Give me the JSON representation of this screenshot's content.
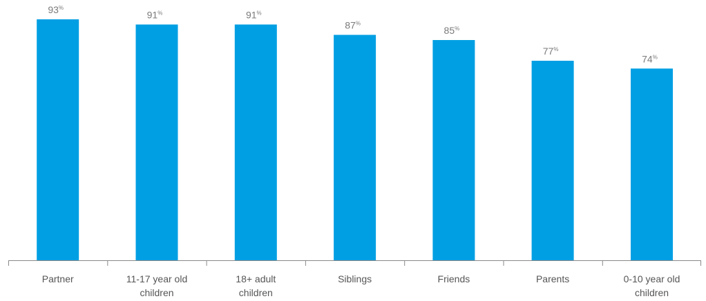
{
  "chart_data": {
    "type": "bar",
    "categories": [
      "Partner",
      "11-17 year old children",
      "18+ adult children",
      "Siblings",
      "Friends",
      "Parents",
      "0-10 year old children"
    ],
    "category_lines": [
      [
        "Partner"
      ],
      [
        "11-17 year old",
        "children"
      ],
      [
        "18+ adult",
        "children"
      ],
      [
        "Siblings"
      ],
      [
        "Friends"
      ],
      [
        "Parents"
      ],
      [
        "0-10 year old",
        "children"
      ]
    ],
    "values": [
      93,
      91,
      91,
      87,
      85,
      77,
      74
    ],
    "value_suffix": "%",
    "ylim": [
      0,
      100
    ],
    "grid": false,
    "title": "",
    "xlabel": "",
    "ylabel": "",
    "bar_color": "#009fe3",
    "axis_color": "#888888",
    "label_color": "#7a7a7a",
    "category_label_color": "#555555"
  }
}
